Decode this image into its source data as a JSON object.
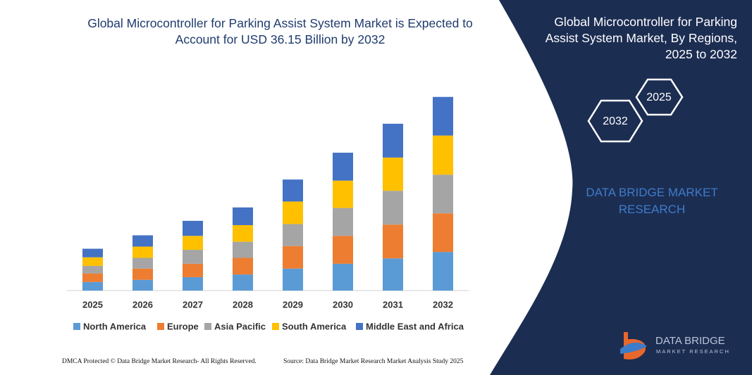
{
  "chart_data": {
    "type": "stacked_bar",
    "title": "Global Microcontroller for Parking Assist System Market is Expected to Account for USD 36.15 Billion by 2032",
    "categories": [
      "2025",
      "2026",
      "2027",
      "2028",
      "2029",
      "2030",
      "2031",
      "2032"
    ],
    "series": [
      {
        "name": "North America",
        "color": "#5b9bd5",
        "values": [
          1.6,
          2.0,
          2.5,
          3.0,
          4.1,
          5.0,
          6.0,
          7.2
        ]
      },
      {
        "name": "Europe",
        "color": "#ed7d31",
        "values": [
          1.6,
          2.1,
          2.5,
          3.1,
          4.2,
          5.2,
          6.3,
          7.2
        ]
      },
      {
        "name": "Asia Pacific",
        "color": "#a5a5a5",
        "values": [
          1.4,
          2.0,
          2.6,
          3.0,
          4.1,
          5.2,
          6.3,
          7.2
        ]
      },
      {
        "name": "South America",
        "color": "#ffc000",
        "values": [
          1.6,
          2.1,
          2.6,
          3.1,
          4.2,
          5.1,
          6.2,
          7.3
        ]
      },
      {
        "name": "Middle East and Africa",
        "color": "#4472c4",
        "values": [
          1.6,
          2.1,
          2.8,
          3.3,
          4.1,
          5.2,
          6.3,
          7.2
        ]
      }
    ],
    "ylim": [
      0,
      40
    ]
  },
  "side_panel": {
    "title": "Global Microcontroller for Parking Assist System Market, By Regions, 2025 to 2032",
    "hexagons": [
      "2025",
      "2032"
    ],
    "brand": "DATA BRIDGE MARKET RESEARCH"
  },
  "logo": {
    "name": "DATA BRIDGE",
    "tagline": "MARKET RESEARCH"
  },
  "footer": {
    "left": "DMCA Protected © Data Bridge Market Research- All Rights Reserved.",
    "right": "Source: Data Bridge Market Research Market Analysis Study 2025"
  }
}
